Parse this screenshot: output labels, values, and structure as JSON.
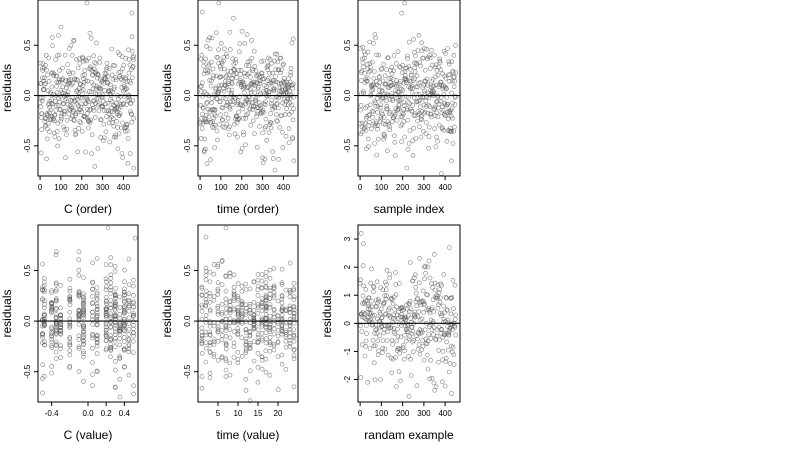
{
  "figure": {
    "background": "#ffffff",
    "point_color": "#555555",
    "line_color": "#000000"
  },
  "chart_data": [
    {
      "type": "scatter",
      "title": "",
      "xlabel": "C (order)",
      "ylabel": "residuals",
      "xlim": [
        -10,
        470
      ],
      "ylim": [
        -0.8,
        0.95
      ],
      "xticks": [
        0,
        100,
        200,
        300,
        400
      ],
      "xtick_labels": [
        "0",
        "100",
        "200",
        "300",
        "400"
      ],
      "yticks": [
        -0.5,
        0.0,
        0.5
      ],
      "ytick_labels": [
        "-0.5",
        "0.0",
        "0.5"
      ],
      "hline": 0,
      "x_distribution": "index",
      "n_points": 460,
      "y_spread": 0.25,
      "seed": 11,
      "notable_points": [
        [
          225,
          0.92
        ],
        [
          440,
          0.82
        ],
        [
          450,
          -0.72
        ],
        [
          5,
          -0.57
        ]
      ]
    },
    {
      "type": "scatter",
      "title": "",
      "xlabel": "time (order)",
      "ylabel": "residuals",
      "xlim": [
        -10,
        470
      ],
      "ylim": [
        -0.8,
        0.95
      ],
      "xticks": [
        0,
        100,
        200,
        300,
        400
      ],
      "xtick_labels": [
        "0",
        "100",
        "200",
        "300",
        "400"
      ],
      "yticks": [
        -0.5,
        0.0,
        0.5
      ],
      "ytick_labels": [
        "-0.5",
        "0.0",
        "0.5"
      ],
      "hline": 0,
      "x_distribution": "index",
      "n_points": 460,
      "y_spread": 0.25,
      "seed": 23,
      "notable_points": [
        [
          90,
          0.92
        ],
        [
          10,
          0.83
        ],
        [
          450,
          -0.65
        ],
        [
          20,
          -0.56
        ]
      ]
    },
    {
      "type": "scatter",
      "title": "",
      "xlabel": "sample index",
      "ylabel": "residuals",
      "xlim": [
        -10,
        470
      ],
      "ylim": [
        -0.8,
        0.95
      ],
      "xticks": [
        0,
        100,
        200,
        300,
        400
      ],
      "xtick_labels": [
        "0",
        "100",
        "200",
        "300",
        "400"
      ],
      "yticks": [
        -0.5,
        0.0,
        0.5
      ],
      "ytick_labels": [
        "-0.5",
        "0.0",
        "0.5"
      ],
      "hline": 0,
      "x_distribution": "index",
      "n_points": 460,
      "y_spread": 0.25,
      "seed": 37,
      "notable_points": [
        [
          210,
          0.92
        ],
        [
          195,
          0.82
        ],
        [
          220,
          -0.72
        ],
        [
          430,
          -0.65
        ]
      ]
    },
    {
      "type": "scatter",
      "title": "",
      "xlabel": "C (value)",
      "ylabel": "residuals",
      "xlim": [
        -0.55,
        0.55
      ],
      "ylim": [
        -0.8,
        0.95
      ],
      "xticks": [
        -0.4,
        0.0,
        0.2,
        0.4
      ],
      "xtick_labels": [
        "-0.4",
        "0.0",
        "0.2",
        "0.4"
      ],
      "yticks": [
        -0.5,
        0.0,
        0.5
      ],
      "ytick_labels": [
        "-0.5",
        "0.0",
        "0.5"
      ],
      "hline": 0,
      "x_distribution": "clusters",
      "x_clusters": [
        -0.5,
        -0.48,
        -0.4,
        -0.35,
        -0.3,
        -0.2,
        -0.1,
        -0.05,
        0.05,
        0.1,
        0.2,
        0.25,
        0.3,
        0.35,
        0.4,
        0.45,
        0.5
      ],
      "n_points": 460,
      "y_spread": 0.25,
      "seed": 53,
      "notable_points": [
        [
          0.22,
          0.92
        ],
        [
          0.52,
          0.82
        ],
        [
          0.5,
          -0.72
        ],
        [
          -0.5,
          -0.57
        ]
      ]
    },
    {
      "type": "scatter",
      "title": "",
      "xlabel": "time (value)",
      "ylabel": "residuals",
      "xlim": [
        0,
        25
      ],
      "ylim": [
        -0.8,
        0.95
      ],
      "xticks": [
        5,
        10,
        15,
        20
      ],
      "xtick_labels": [
        "5",
        "10",
        "15",
        "20"
      ],
      "yticks": [
        -0.5,
        0.0,
        0.5
      ],
      "ytick_labels": [
        "-0.5",
        "0.0",
        "0.5"
      ],
      "hline": 0,
      "x_distribution": "clusters",
      "x_clusters": [
        1,
        2,
        3,
        4,
        5,
        6,
        7,
        8,
        9,
        10,
        11,
        12,
        13,
        14,
        15,
        16,
        17,
        18,
        19,
        20,
        21,
        22,
        23,
        24
      ],
      "n_points": 460,
      "y_spread": 0.25,
      "seed": 71,
      "notable_points": [
        [
          7,
          0.92
        ],
        [
          2,
          0.83
        ],
        [
          24,
          -0.65
        ],
        [
          3,
          -0.56
        ]
      ]
    },
    {
      "type": "scatter",
      "title": "",
      "xlabel": "randam example",
      "ylabel": "residuals",
      "xlim": [
        -10,
        470
      ],
      "ylim": [
        -2.8,
        3.5
      ],
      "xticks": [
        0,
        100,
        200,
        300,
        400
      ],
      "xtick_labels": [
        "0",
        "100",
        "200",
        "300",
        "400"
      ],
      "yticks": [
        -2,
        -1,
        0,
        1,
        2,
        3
      ],
      "ytick_labels": [
        "-2",
        "-1",
        "0",
        "1",
        "2",
        "3"
      ],
      "hline": 0,
      "x_distribution": "index",
      "n_points": 400,
      "y_spread": 1.0,
      "seed": 97,
      "notable_points": [
        [
          5,
          3.2
        ],
        [
          420,
          2.7
        ],
        [
          230,
          -2.6
        ],
        [
          430,
          -2.5
        ]
      ]
    }
  ]
}
